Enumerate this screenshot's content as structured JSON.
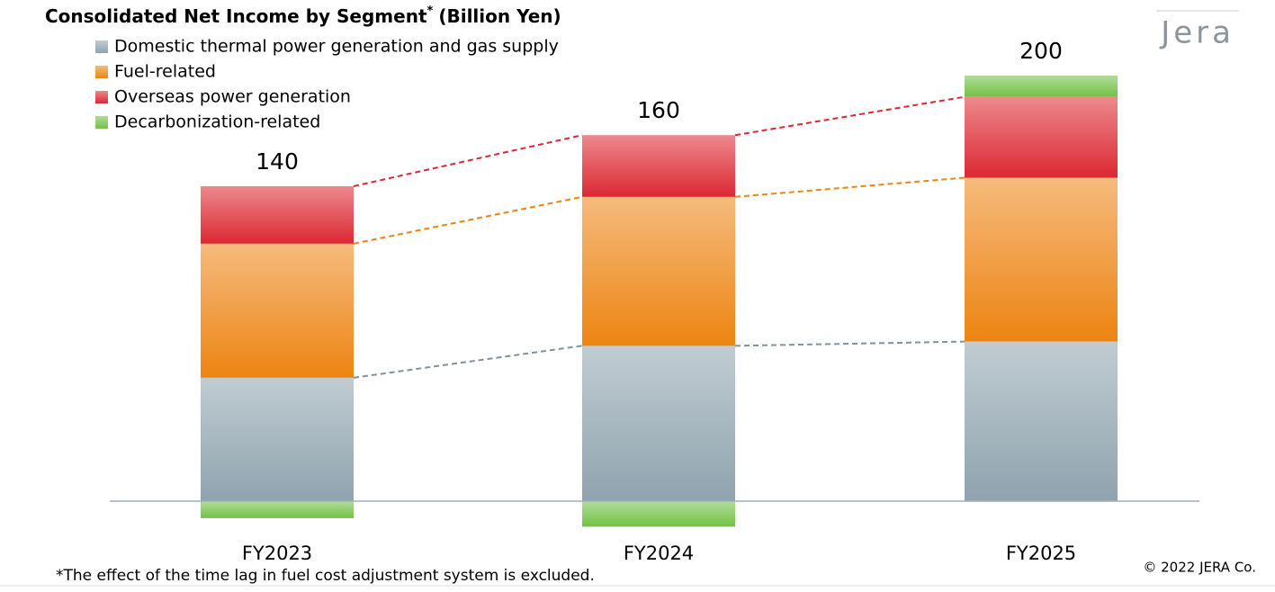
{
  "chart_data": {
    "type": "stacked_bar",
    "title": "Consolidated Net Income by Segment",
    "title_mark": "*",
    "title_unit": "(Billion Yen)",
    "categories": [
      "FY2023",
      "FY2024",
      "FY2025"
    ],
    "series": [
      {
        "name": "Domestic thermal power generation and gas supply",
        "color": "#8fa3ae",
        "values": [
          58,
          73,
          75
        ]
      },
      {
        "name": "Fuel-related",
        "color": "#ec8412",
        "values": [
          63,
          70,
          77
        ]
      },
      {
        "name": "Overseas power generation",
        "color": "#dc2832",
        "values": [
          27,
          29,
          38
        ]
      },
      {
        "name": "Decarbonization-related",
        "color": "#72c146",
        "values": [
          -8,
          -12,
          10
        ]
      }
    ],
    "totals": [
      140,
      160,
      200
    ],
    "ylim": [
      -20,
      210
    ],
    "footnote": "*The effect of the time lag in fuel cost adjustment system is excluded.",
    "copyright": "© 2022 JERA Co.",
    "logo": "Jera"
  }
}
